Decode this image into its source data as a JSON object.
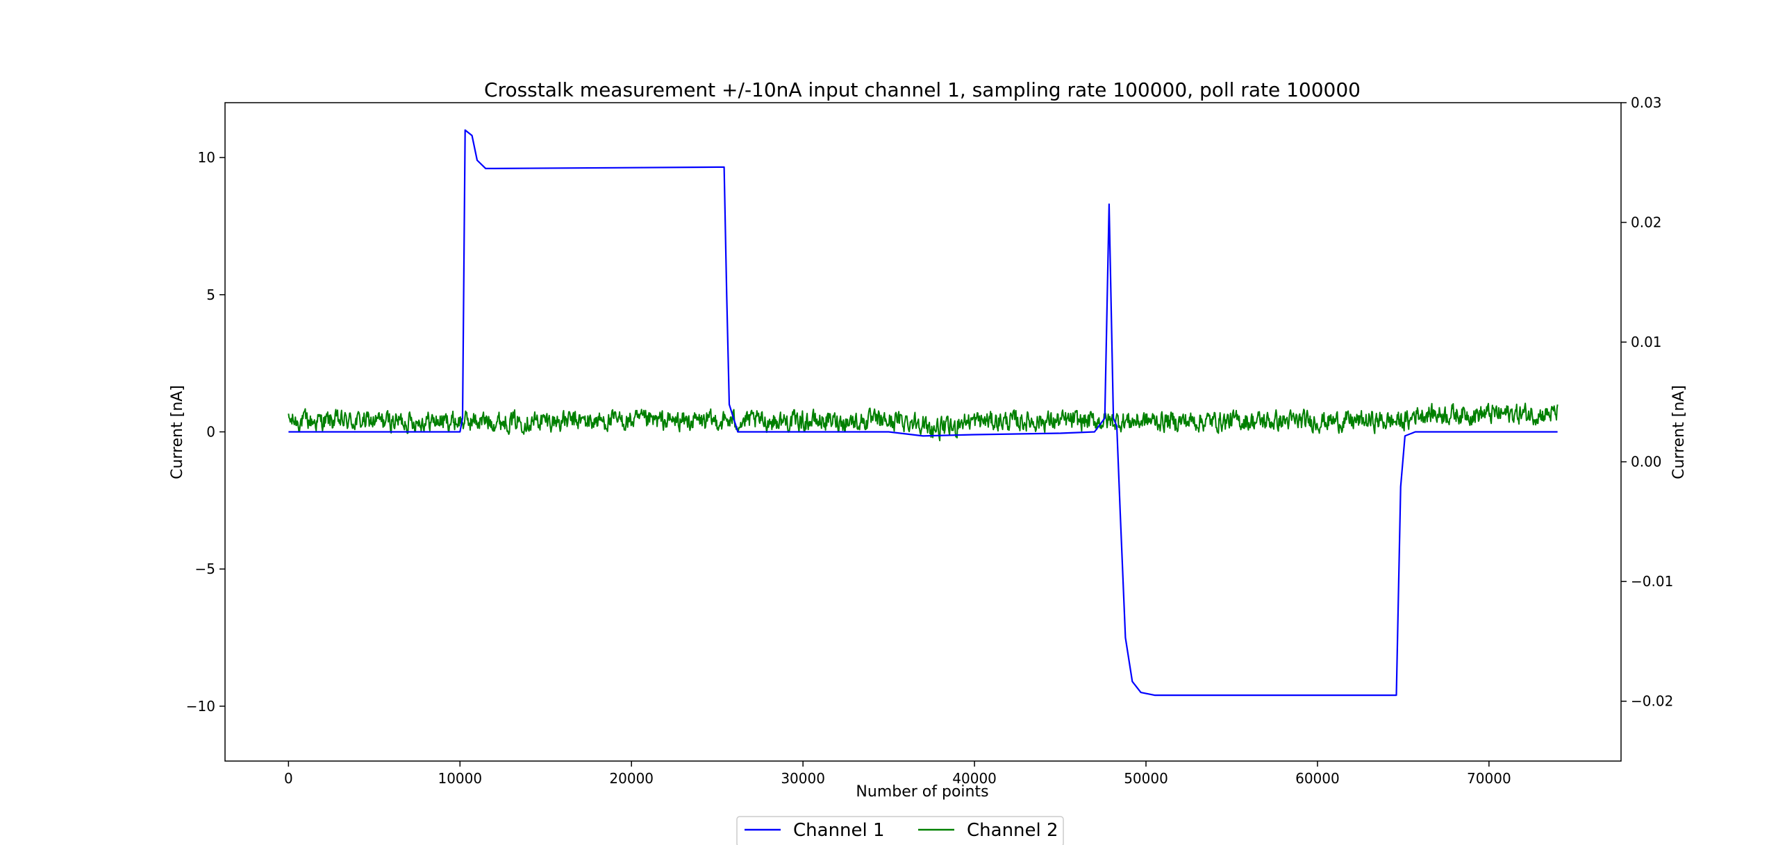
{
  "chart_data": {
    "type": "line",
    "title": "Crosstalk measurement +/-10nA input channel 1, sampling rate 100000, poll rate 100000",
    "xlabel": "Number of points",
    "ylabel_left": "Current [nA]",
    "ylabel_right": "Current [nA]",
    "xlim": [
      -3700,
      77700
    ],
    "ylim_left": [
      -12,
      12
    ],
    "ylim_right": [
      -0.025,
      0.03
    ],
    "x_ticks": [
      0,
      10000,
      20000,
      30000,
      40000,
      50000,
      60000,
      70000
    ],
    "y_ticks_left": [
      -10,
      -5,
      0,
      5,
      10
    ],
    "y_ticks_right": [
      -0.02,
      -0.01,
      0.0,
      0.01,
      0.02,
      0.03
    ],
    "x_tick_labels": [
      "0",
      "10000",
      "20000",
      "30000",
      "40000",
      "50000",
      "60000",
      "70000"
    ],
    "y_tick_labels_left": [
      "−10",
      "−5",
      "0",
      "5",
      "10"
    ],
    "y_tick_labels_right": [
      "−0.02",
      "−0.01",
      "0.00",
      "0.01",
      "0.02",
      "0.03"
    ],
    "grid": false,
    "legend_position": "bottom-center",
    "series": [
      {
        "name": "Channel 1",
        "axis": "left",
        "color": "#0000ff",
        "x": [
          0,
          10000,
          10150,
          10300,
          10700,
          11000,
          11500,
          12000,
          25000,
          25400,
          25550,
          25700,
          26200,
          30000,
          35000,
          37000,
          40000,
          45000,
          47000,
          47600,
          47850,
          48100,
          48300,
          48500,
          48800,
          49200,
          49700,
          50500,
          55000,
          64500,
          64600,
          64850,
          65100,
          65700,
          68000,
          74000
        ],
        "y": [
          0,
          0,
          0.5,
          11,
          10.8,
          9.9,
          9.6,
          9.6,
          9.65,
          9.65,
          5,
          1,
          0,
          0,
          0,
          -0.15,
          -0.1,
          -0.05,
          0,
          0.5,
          8.3,
          0.5,
          0.2,
          -3,
          -7.5,
          -9.1,
          -9.5,
          -9.6,
          -9.6,
          -9.6,
          -9.6,
          -2,
          -0.15,
          0,
          0,
          0
        ]
      },
      {
        "name": "Channel 2",
        "axis": "right",
        "color": "#008000",
        "noise_level": 0.0034,
        "noise_amplitude": 0.0007,
        "x_range": [
          0,
          74000
        ]
      }
    ]
  }
}
